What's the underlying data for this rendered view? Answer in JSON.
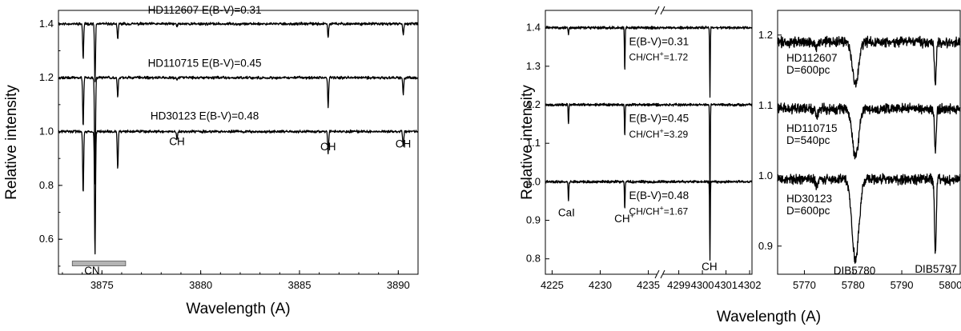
{
  "chart_data": [
    {
      "type": "line",
      "panel": "left",
      "xlabel": "Wavelength (A)",
      "ylabel": "Relative intensity",
      "xlim": [
        3872.8,
        3891.0
      ],
      "ylim": [
        0.47,
        1.45
      ],
      "x_ticks": [
        3875,
        3880,
        3885,
        3890
      ],
      "y_ticks": [
        0.6,
        0.8,
        1.0,
        1.2,
        1.4
      ],
      "series": [
        {
          "name": "HD112607 E(B-V)=0.31",
          "baseline": 1.4,
          "color": "#000000",
          "lines": [
            {
              "x": 3874.05,
              "depth": 0.13
            },
            {
              "x": 3874.65,
              "depth": 0.22
            },
            {
              "x": 3875.8,
              "depth": 0.06
            },
            {
              "x": 3878.8,
              "depth": 0.01
            },
            {
              "x": 3886.45,
              "depth": 0.05
            },
            {
              "x": 3890.25,
              "depth": 0.04
            }
          ]
        },
        {
          "name": "HD110715 E(B-V)=0.45",
          "baseline": 1.2,
          "color": "#000000",
          "lines": [
            {
              "x": 3874.05,
              "depth": 0.18
            },
            {
              "x": 3874.65,
              "depth": 0.4
            },
            {
              "x": 3875.8,
              "depth": 0.07
            },
            {
              "x": 3878.8,
              "depth": 0.01
            },
            {
              "x": 3886.45,
              "depth": 0.11
            },
            {
              "x": 3890.25,
              "depth": 0.06
            }
          ]
        },
        {
          "name": "HD30123 E(B-V)=0.48",
          "baseline": 1.0,
          "color": "#000000",
          "lines": [
            {
              "x": 3874.05,
              "depth": 0.23
            },
            {
              "x": 3874.65,
              "depth": 0.46
            },
            {
              "x": 3875.8,
              "depth": 0.14
            },
            {
              "x": 3878.8,
              "depth": 0.03
            },
            {
              "x": 3886.45,
              "depth": 0.08
            },
            {
              "x": 3890.25,
              "depth": 0.06
            }
          ]
        }
      ],
      "annotations": [
        {
          "text": "HD112607 E(B-V)=0.31",
          "x": 3880.2,
          "y": 1.438
        },
        {
          "text": "HD110715 E(B-V)=0.45",
          "x": 3880.2,
          "y": 1.24
        },
        {
          "text": "HD30123 E(B-V)=0.48",
          "x": 3880.2,
          "y": 1.045
        },
        {
          "text": "CH",
          "x": 3878.8,
          "y": 0.95
        },
        {
          "text": "CH",
          "x": 3886.45,
          "y": 0.93
        },
        {
          "text": "CH",
          "x": 3890.25,
          "y": 0.94
        },
        {
          "text": "CN",
          "x": 3874.5,
          "y": 0.47
        }
      ],
      "band": {
        "label": "CN",
        "x0": 3873.5,
        "x1": 3876.2,
        "y": 0.51,
        "color": "#b4b4b4"
      }
    },
    {
      "type": "line",
      "panel": "middle",
      "xlabel": "Wavelength (A)",
      "ylabel": "Relative intensity",
      "ylim": [
        0.76,
        1.445
      ],
      "y_ticks": [
        0.8,
        0.9,
        1.0,
        1.1,
        1.2,
        1.3,
        1.4
      ],
      "x_segments": [
        {
          "xlim": [
            4224.3,
            4236.2
          ],
          "ticks": [
            4225,
            4230,
            4235
          ]
        },
        {
          "xlim": [
            4298.2,
            4302.1
          ],
          "ticks": [
            4299,
            4300,
            4301,
            4302
          ]
        }
      ],
      "series": [
        {
          "baseline": 1.4,
          "color": "#000000",
          "label": "E(B-V)=0.31",
          "ratio": "CH/CH+=1.72",
          "lines": [
            {
              "x": 4226.7,
              "depth": 0.02
            },
            {
              "x": 4232.55,
              "depth": 0.11
            },
            {
              "x": 4300.32,
              "depth": 0.18
            }
          ]
        },
        {
          "baseline": 1.2,
          "color": "#000000",
          "label": "E(B-V)=0.45",
          "ratio": "CH/CH+=3.29",
          "lines": [
            {
              "x": 4226.7,
              "depth": 0.05
            },
            {
              "x": 4232.55,
              "depth": 0.08
            },
            {
              "x": 4300.32,
              "depth": 0.27
            }
          ]
        },
        {
          "baseline": 1.0,
          "color": "#000000",
          "label": "E(B-V)=0.48",
          "ratio": "CH/CH+=1.67",
          "lines": [
            {
              "x": 4226.7,
              "depth": 0.05
            },
            {
              "x": 4232.55,
              "depth": 0.07
            },
            {
              "x": 4300.32,
              "depth": 0.2
            }
          ]
        }
      ],
      "annotations": [
        {
          "text": "E(B-V)=0.31",
          "seg": 0,
          "x": 4233.0,
          "y": 1.355
        },
        {
          "text": "CH/CH",
          "sup": "+",
          "tail": "=1.72",
          "seg": 0,
          "x": 4233.0,
          "y": 1.315
        },
        {
          "text": "E(B-V)=0.45",
          "seg": 0,
          "x": 4233.0,
          "y": 1.155
        },
        {
          "text": "CH/CH",
          "sup": "+",
          "tail": "=3.29",
          "seg": 0,
          "x": 4233.0,
          "y": 1.115
        },
        {
          "text": "E(B-V)=0.48",
          "seg": 0,
          "x": 4233.0,
          "y": 0.955
        },
        {
          "text": "CH/CH",
          "sup": "+",
          "tail": "=1.67",
          "seg": 0,
          "x": 4233.0,
          "y": 0.915
        },
        {
          "text": "CaI",
          "seg": 0,
          "x": 4226.5,
          "y": 0.91
        },
        {
          "text": "CH",
          "sup": "+",
          "tail": "",
          "seg": 0,
          "x": 4232.5,
          "y": 0.895
        },
        {
          "text": "CH",
          "seg": 1,
          "x": 4300.3,
          "y": 0.77
        }
      ],
      "break_marks": [
        "//",
        "//"
      ]
    },
    {
      "type": "line",
      "panel": "right",
      "xlabel": "Wavelength (A)",
      "xlim": [
        5764.5,
        5802.0
      ],
      "ylim": [
        0.86,
        1.235
      ],
      "x_ticks": [
        5770,
        5780,
        5790,
        5800
      ],
      "y_ticks": [
        0.9,
        1.0,
        1.1,
        1.2
      ],
      "series": [
        {
          "baseline": 1.19,
          "color": "#000000",
          "star": "HD112607",
          "distance": "D=600pc",
          "bands": [
            {
              "x": 5780.5,
              "depth": 0.06,
              "width": 0.9
            },
            {
              "x": 5796.9,
              "depth": 0.06,
              "width": 0.25
            },
            {
              "x": 5772.5,
              "depth": 0.01,
              "width": 0.3
            }
          ]
        },
        {
          "baseline": 1.095,
          "color": "#000000",
          "star": "HD110715",
          "distance": "D=540pc",
          "bands": [
            {
              "x": 5780.5,
              "depth": 0.07,
              "width": 0.9
            },
            {
              "x": 5796.9,
              "depth": 0.06,
              "width": 0.25
            },
            {
              "x": 5772.5,
              "depth": 0.01,
              "width": 0.3
            }
          ]
        },
        {
          "baseline": 0.995,
          "color": "#000000",
          "star": "HD30123",
          "distance": "D=600pc",
          "bands": [
            {
              "x": 5780.5,
              "depth": 0.115,
              "width": 1.0
            },
            {
              "x": 5796.9,
              "depth": 0.105,
              "width": 0.25
            },
            {
              "x": 5772.5,
              "depth": 0.01,
              "width": 0.3
            }
          ]
        }
      ],
      "annotations": [
        {
          "text": "HD112607",
          "x": 5766.3,
          "y": 1.162
        },
        {
          "text": "D=600pc",
          "x": 5766.3,
          "y": 1.145
        },
        {
          "text": "HD110715",
          "x": 5766.3,
          "y": 1.062
        },
        {
          "text": "D=540pc",
          "x": 5766.3,
          "y": 1.045
        },
        {
          "text": "HD30123",
          "x": 5766.3,
          "y": 0.962
        },
        {
          "text": "D=600pc",
          "x": 5766.3,
          "y": 0.945
        },
        {
          "text": "DIB5780",
          "x": 5780.3,
          "y": 0.86
        },
        {
          "text": "DIB5797",
          "x": 5797.0,
          "y": 0.862
        }
      ]
    }
  ]
}
